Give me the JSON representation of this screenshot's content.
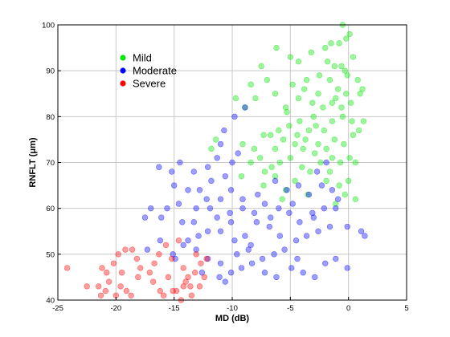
{
  "chart_data": {
    "type": "scatter",
    "title": "",
    "xlabel": "MD (dB)",
    "ylabel": "RNFLT (μm)",
    "xlim": [
      -25,
      5
    ],
    "ylim": [
      40,
      100
    ],
    "x_ticks": [
      -25,
      -20,
      -15,
      -10,
      -5,
      0,
      5
    ],
    "y_ticks": [
      40,
      50,
      60,
      70,
      80,
      90,
      100
    ],
    "x_tick_labels": [
      "-25",
      "-20",
      "-15",
      "-10",
      "-5",
      "0",
      "5"
    ],
    "y_tick_labels": [
      "40",
      "50",
      "60",
      "70",
      "80",
      "90",
      "100"
    ],
    "grid": true,
    "legend_position": "upper-left inside plot",
    "series": [
      {
        "name": "Mild",
        "color": "#00e600",
        "points": [
          [
            -6.2,
            95
          ],
          [
            -5,
            93
          ],
          [
            -4.3,
            92
          ],
          [
            -3.2,
            94
          ],
          [
            -2,
            95
          ],
          [
            -1.5,
            96
          ],
          [
            -0.8,
            96
          ],
          [
            -0.2,
            97
          ],
          [
            0.1,
            98
          ],
          [
            -0.5,
            100
          ],
          [
            -1.8,
            92
          ],
          [
            -1.2,
            91
          ],
          [
            0.4,
            93
          ],
          [
            -0.3,
            90
          ],
          [
            -1.6,
            88
          ],
          [
            -0.1,
            89
          ],
          [
            0.8,
            88
          ],
          [
            1.2,
            86
          ],
          [
            -7.5,
            91
          ],
          [
            -7,
            88
          ],
          [
            -8.4,
            87
          ],
          [
            -8,
            84
          ],
          [
            -6.3,
            85
          ],
          [
            -5.4,
            82
          ],
          [
            -4.3,
            84
          ],
          [
            -3.1,
            83
          ],
          [
            -2.2,
            82
          ],
          [
            -1.1,
            84
          ],
          [
            0.2,
            83
          ],
          [
            1,
            85
          ],
          [
            -0.9,
            86
          ],
          [
            -2.6,
            85
          ],
          [
            -0.5,
            80
          ],
          [
            -1.4,
            79
          ],
          [
            -2.8,
            78
          ],
          [
            -3.4,
            77
          ],
          [
            -4.2,
            79
          ],
          [
            -5.1,
            78
          ],
          [
            -6,
            77
          ],
          [
            -6.7,
            76
          ],
          [
            -7.3,
            76
          ],
          [
            -5.6,
            75
          ],
          [
            -4.6,
            74
          ],
          [
            -3.9,
            73
          ],
          [
            -2.6,
            74
          ],
          [
            -1.9,
            73
          ],
          [
            -1.2,
            75
          ],
          [
            -0.4,
            74
          ],
          [
            0.4,
            76
          ],
          [
            0.9,
            77
          ],
          [
            1.3,
            79
          ],
          [
            -8.1,
            73
          ],
          [
            -9.1,
            74
          ],
          [
            -9.2,
            67
          ],
          [
            -8.4,
            70
          ],
          [
            -7.6,
            71
          ],
          [
            -6.6,
            69
          ],
          [
            -5.9,
            70
          ],
          [
            -5,
            71
          ],
          [
            -4,
            69
          ],
          [
            -3.3,
            68
          ],
          [
            -2.4,
            70
          ],
          [
            -1.4,
            71
          ],
          [
            -0.7,
            70
          ],
          [
            0.1,
            71
          ],
          [
            0.6,
            70
          ],
          [
            -1.9,
            66
          ],
          [
            -0.8,
            65
          ],
          [
            0,
            66
          ],
          [
            -0.3,
            63
          ],
          [
            -1.1,
            61
          ],
          [
            -5.4,
            64
          ],
          [
            -4.6,
            66
          ],
          [
            -6.3,
            67
          ],
          [
            -7.3,
            65
          ],
          [
            -2.9,
            72
          ],
          [
            -3.7,
            75
          ],
          [
            -5.3,
            81
          ],
          [
            -11.8,
            73
          ],
          [
            -11.4,
            75
          ],
          [
            -9.7,
            84
          ],
          [
            -8.9,
            82
          ],
          [
            -4.8,
            87
          ],
          [
            -3.6,
            88
          ],
          [
            -2.5,
            89
          ],
          [
            -0.6,
            91
          ],
          [
            -0.2,
            85
          ],
          [
            -1.4,
            83
          ],
          [
            0.3,
            79
          ],
          [
            -2.1,
            77
          ],
          [
            -4.4,
            76
          ],
          [
            -6.3,
            73
          ],
          [
            -7.2,
            68
          ],
          [
            -5.7,
            62
          ],
          [
            -3.5,
            63
          ],
          [
            -1.6,
            68
          ],
          [
            0.6,
            62
          ],
          [
            -0.6,
            82
          ],
          [
            -3,
            80
          ],
          [
            -3.8,
            86
          ]
        ]
      },
      {
        "name": "Moderate",
        "color": "#0000ff",
        "points": [
          [
            -8.9,
            82
          ],
          [
            -9.8,
            80
          ],
          [
            -10.7,
            77
          ],
          [
            -11,
            74
          ],
          [
            -11.3,
            71
          ],
          [
            -12.1,
            69
          ],
          [
            -13.3,
            68
          ],
          [
            -14.5,
            70
          ],
          [
            -15.2,
            68
          ],
          [
            -16.3,
            69
          ],
          [
            -15,
            65
          ],
          [
            -13.8,
            64
          ],
          [
            -12.8,
            64
          ],
          [
            -11.8,
            66
          ],
          [
            -10.6,
            67
          ],
          [
            -10,
            70
          ],
          [
            -9.5,
            72
          ],
          [
            -10.1,
            64
          ],
          [
            -11,
            62
          ],
          [
            -11.9,
            60
          ],
          [
            -13.1,
            60
          ],
          [
            -14.6,
            61
          ],
          [
            -15.6,
            60
          ],
          [
            -17,
            60
          ],
          [
            -17.5,
            58
          ],
          [
            -16.1,
            58
          ],
          [
            -14.3,
            57
          ],
          [
            -13.3,
            57
          ],
          [
            -12.1,
            55
          ],
          [
            -11,
            55
          ],
          [
            -10.1,
            57
          ],
          [
            -9.1,
            60
          ],
          [
            -8.1,
            59
          ],
          [
            -7.2,
            61
          ],
          [
            -6,
            60
          ],
          [
            -5.1,
            59
          ],
          [
            -4.2,
            57
          ],
          [
            -3,
            58
          ],
          [
            -2.1,
            60
          ],
          [
            -1.1,
            60
          ],
          [
            -0.1,
            56
          ],
          [
            1.1,
            55
          ],
          [
            1.4,
            54
          ],
          [
            -1.6,
            56
          ],
          [
            -2.6,
            55
          ],
          [
            -3.6,
            54
          ],
          [
            -4.5,
            53
          ],
          [
            -5.5,
            51
          ],
          [
            -6.4,
            50
          ],
          [
            -7.4,
            49
          ],
          [
            -8.3,
            48
          ],
          [
            -9.2,
            47
          ],
          [
            -10.1,
            46
          ],
          [
            -10.6,
            44
          ],
          [
            -11.1,
            45
          ],
          [
            -12.6,
            46
          ],
          [
            -13.1,
            51
          ],
          [
            -14.2,
            52
          ],
          [
            -15.1,
            50
          ],
          [
            -16.2,
            53
          ],
          [
            -17.3,
            51
          ],
          [
            -12.1,
            49
          ],
          [
            -11,
            48
          ],
          [
            -9.6,
            50
          ],
          [
            -8.6,
            51
          ],
          [
            -7.2,
            46
          ],
          [
            -6.2,
            45
          ],
          [
            -4.9,
            47
          ],
          [
            -3.9,
            46
          ],
          [
            -2.9,
            45
          ],
          [
            -2,
            48
          ],
          [
            -1.1,
            49
          ],
          [
            -0.1,
            47
          ],
          [
            -4.4,
            49
          ],
          [
            -5.9,
            54
          ],
          [
            -6.8,
            56
          ],
          [
            -7.9,
            57
          ],
          [
            -8.9,
            54
          ],
          [
            -9.8,
            53
          ],
          [
            -3.4,
            63
          ],
          [
            -2.3,
            65
          ],
          [
            -1.4,
            64
          ],
          [
            -4.3,
            65
          ],
          [
            -5.3,
            64
          ],
          [
            -6.3,
            66
          ],
          [
            -7.8,
            63
          ],
          [
            -9.1,
            62
          ],
          [
            -10.2,
            59
          ],
          [
            -11.3,
            58
          ],
          [
            -12.9,
            54
          ],
          [
            -13.8,
            53
          ],
          [
            -14.9,
            49
          ],
          [
            -12.2,
            62
          ],
          [
            -2.7,
            68
          ],
          [
            -1.9,
            70
          ],
          [
            -0.9,
            62
          ],
          [
            -3.1,
            59
          ],
          [
            -4.8,
            61
          ],
          [
            -6.7,
            58
          ],
          [
            -8.4,
            52
          ]
        ]
      },
      {
        "name": "Severe",
        "color": "#ff0000",
        "points": [
          [
            -24.2,
            47
          ],
          [
            -22.5,
            43
          ],
          [
            -21.3,
            41
          ],
          [
            -20.6,
            44
          ],
          [
            -20.2,
            48
          ],
          [
            -19.8,
            50
          ],
          [
            -19.2,
            51
          ],
          [
            -18.6,
            51
          ],
          [
            -18.2,
            49
          ],
          [
            -19.5,
            46
          ],
          [
            -20.8,
            46
          ],
          [
            -21.2,
            47
          ],
          [
            -20.9,
            42
          ],
          [
            -19.6,
            43
          ],
          [
            -19.1,
            42
          ],
          [
            -18.7,
            41
          ],
          [
            -20,
            41
          ],
          [
            -21.5,
            43
          ],
          [
            -16.8,
            44
          ],
          [
            -16.2,
            42
          ],
          [
            -15.9,
            41
          ],
          [
            -15.1,
            42
          ],
          [
            -14.8,
            42
          ],
          [
            -14.2,
            43
          ],
          [
            -14,
            44
          ],
          [
            -13.8,
            45
          ],
          [
            -13.2,
            46
          ],
          [
            -12.7,
            48
          ],
          [
            -12.4,
            45
          ],
          [
            -12.8,
            43
          ],
          [
            -13.5,
            41
          ],
          [
            -14.4,
            40
          ],
          [
            -15.5,
            45
          ],
          [
            -16.3,
            50
          ],
          [
            -17.1,
            46
          ],
          [
            -15.7,
            52
          ],
          [
            -14.6,
            53
          ],
          [
            -13.1,
            50
          ],
          [
            -12.2,
            49
          ],
          [
            -14.2,
            47
          ],
          [
            -15.2,
            49
          ],
          [
            -13.6,
            43
          ],
          [
            -16.7,
            48
          ],
          [
            -17.9,
            47
          ],
          [
            -18.1,
            45
          ]
        ]
      }
    ]
  }
}
